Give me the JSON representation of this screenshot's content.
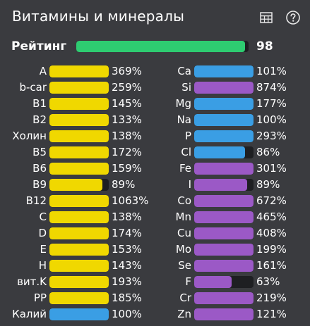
{
  "title": "Витамины и минералы",
  "icons": {
    "table": "table-icon",
    "help": "help-icon"
  },
  "colors": {
    "background": "#3a3b3f",
    "bar_track": "#1e1f22",
    "green": "#2ecc71",
    "yellow": "#f0d800",
    "blue": "#3a9ee4",
    "purple": "#9b59c6"
  },
  "rating": {
    "label": "Рейтинг",
    "value": "98",
    "fraction": 0.98
  },
  "vitamins": [
    {
      "name": "A",
      "value": "369%",
      "fill": 1.0,
      "color": "yellow"
    },
    {
      "name": "b-car",
      "value": "259%",
      "fill": 1.0,
      "color": "yellow"
    },
    {
      "name": "B1",
      "value": "145%",
      "fill": 1.0,
      "color": "yellow"
    },
    {
      "name": "B2",
      "value": "133%",
      "fill": 1.0,
      "color": "yellow"
    },
    {
      "name": "Холин",
      "value": "138%",
      "fill": 1.0,
      "color": "yellow"
    },
    {
      "name": "B5",
      "value": "172%",
      "fill": 1.0,
      "color": "yellow"
    },
    {
      "name": "B6",
      "value": "159%",
      "fill": 1.0,
      "color": "yellow"
    },
    {
      "name": "B9",
      "value": "89%",
      "fill": 0.89,
      "color": "yellow"
    },
    {
      "name": "B12",
      "value": "1063%",
      "fill": 1.0,
      "color": "yellow"
    },
    {
      "name": "C",
      "value": "138%",
      "fill": 1.0,
      "color": "yellow"
    },
    {
      "name": "D",
      "value": "174%",
      "fill": 1.0,
      "color": "yellow"
    },
    {
      "name": "E",
      "value": "153%",
      "fill": 1.0,
      "color": "yellow"
    },
    {
      "name": "H",
      "value": "143%",
      "fill": 1.0,
      "color": "yellow"
    },
    {
      "name": "вит.K",
      "value": "193%",
      "fill": 1.0,
      "color": "yellow"
    },
    {
      "name": "PP",
      "value": "185%",
      "fill": 1.0,
      "color": "yellow"
    },
    {
      "name": "Калий",
      "value": "100%",
      "fill": 1.0,
      "color": "blue"
    }
  ],
  "minerals": [
    {
      "name": "Ca",
      "value": "101%",
      "fill": 1.0,
      "color": "blue"
    },
    {
      "name": "Si",
      "value": "874%",
      "fill": 1.0,
      "color": "purple"
    },
    {
      "name": "Mg",
      "value": "177%",
      "fill": 1.0,
      "color": "blue"
    },
    {
      "name": "Na",
      "value": "100%",
      "fill": 1.0,
      "color": "blue"
    },
    {
      "name": "P",
      "value": "293%",
      "fill": 1.0,
      "color": "blue"
    },
    {
      "name": "Cl",
      "value": "86%",
      "fill": 0.86,
      "color": "blue"
    },
    {
      "name": "Fe",
      "value": "301%",
      "fill": 1.0,
      "color": "purple"
    },
    {
      "name": "I",
      "value": "89%",
      "fill": 0.89,
      "color": "purple"
    },
    {
      "name": "Co",
      "value": "672%",
      "fill": 1.0,
      "color": "purple"
    },
    {
      "name": "Mn",
      "value": "465%",
      "fill": 1.0,
      "color": "purple"
    },
    {
      "name": "Cu",
      "value": "408%",
      "fill": 1.0,
      "color": "purple"
    },
    {
      "name": "Mo",
      "value": "199%",
      "fill": 1.0,
      "color": "purple"
    },
    {
      "name": "Se",
      "value": "161%",
      "fill": 1.0,
      "color": "purple"
    },
    {
      "name": "F",
      "value": "63%",
      "fill": 0.63,
      "color": "purple"
    },
    {
      "name": "Cr",
      "value": "219%",
      "fill": 1.0,
      "color": "purple"
    },
    {
      "name": "Zn",
      "value": "121%",
      "fill": 1.0,
      "color": "purple"
    }
  ]
}
